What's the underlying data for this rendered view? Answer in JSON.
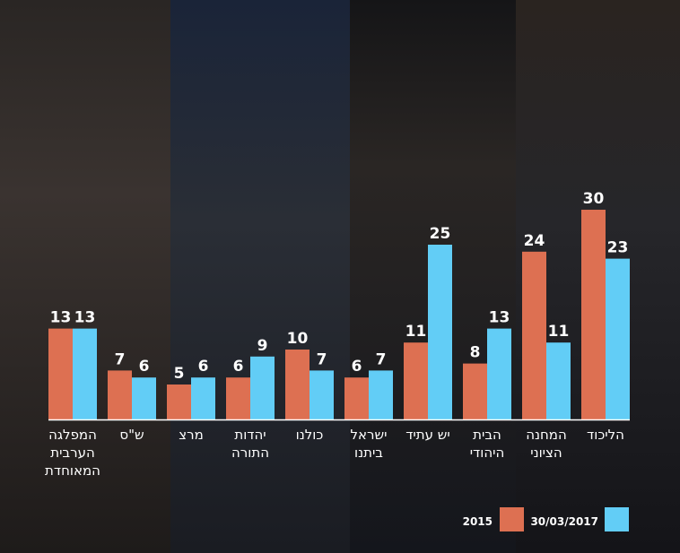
{
  "colors": {
    "s2015": "#dd7052",
    "s2017": "#62cdf6"
  },
  "chart_data": {
    "type": "bar",
    "title": "",
    "xlabel": "",
    "ylabel": "",
    "ylim": [
      0,
      30
    ],
    "grid": false,
    "legend_placement": "bottom-right",
    "categories": [
      [
        "המפלגה",
        "הערבית",
        "המאוחדת"
      ],
      [
        "ש\"ס"
      ],
      [
        "מרצ"
      ],
      [
        "יהדות",
        "התורה"
      ],
      [
        "כולנו"
      ],
      [
        "ישראל",
        "ביתנו"
      ],
      [
        "יש עתיד"
      ],
      [
        "הבית",
        "היהודי"
      ],
      [
        "המחנה",
        "הציוני"
      ],
      [
        "הליכוד"
      ]
    ],
    "series": [
      {
        "name": "2015",
        "values": [
          13,
          7,
          5,
          6,
          10,
          6,
          11,
          8,
          24,
          30
        ]
      },
      {
        "name": "30/03/2017",
        "values": [
          13,
          6,
          6,
          9,
          7,
          7,
          25,
          13,
          11,
          23
        ]
      }
    ]
  }
}
